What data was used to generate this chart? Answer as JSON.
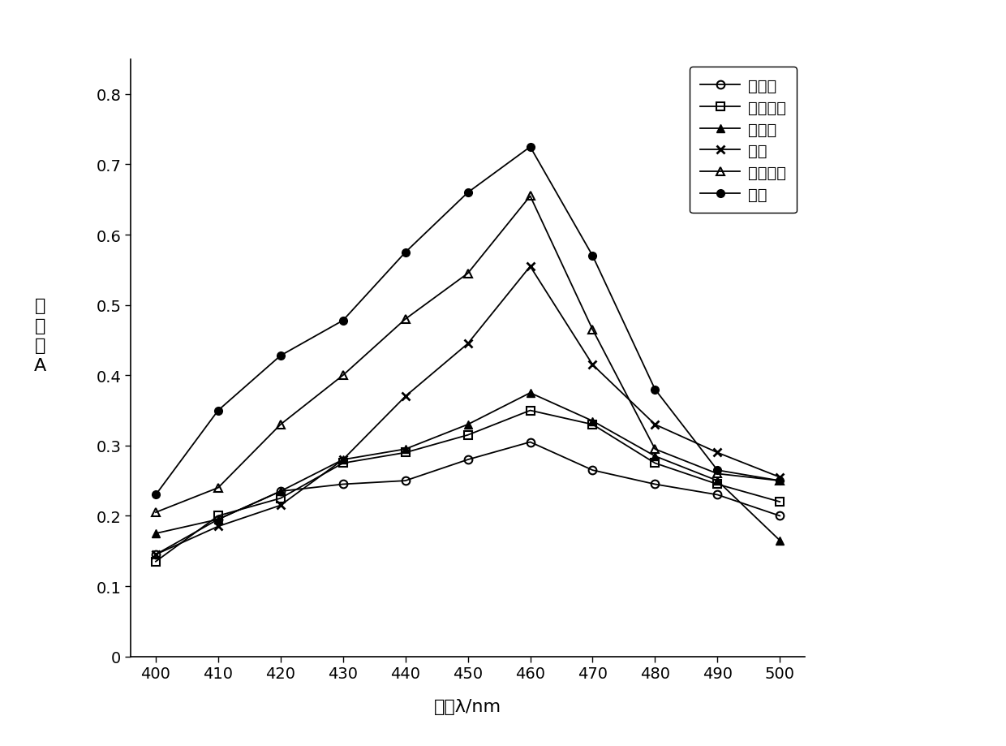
{
  "x": [
    400,
    410,
    420,
    430,
    440,
    450,
    460,
    470,
    480,
    490,
    500
  ],
  "series_order": [
    "正己烷",
    "乙酸乙酯",
    "石油醚",
    "乙醚",
    "无水乙醇",
    "丙酮"
  ],
  "series": {
    "正己烷": {
      "y": [
        0.145,
        0.195,
        0.235,
        0.245,
        0.25,
        0.28,
        0.305,
        0.265,
        0.245,
        0.23,
        0.2
      ],
      "marker": "o",
      "fillstyle": "none"
    },
    "乙酸乙酯": {
      "y": [
        0.135,
        0.2,
        0.225,
        0.275,
        0.29,
        0.315,
        0.35,
        0.33,
        0.275,
        0.245,
        0.22
      ],
      "marker": "s",
      "fillstyle": "none"
    },
    "石油醚": {
      "y": [
        0.175,
        0.195,
        0.235,
        0.28,
        0.295,
        0.33,
        0.375,
        0.335,
        0.285,
        0.25,
        0.165
      ],
      "marker": "^",
      "fillstyle": "full"
    },
    "乙醚": {
      "y": [
        0.145,
        0.185,
        0.215,
        0.28,
        0.37,
        0.445,
        0.555,
        0.415,
        0.33,
        0.29,
        0.255
      ],
      "marker": "x",
      "fillstyle": "full"
    },
    "无水乙醇": {
      "y": [
        0.205,
        0.24,
        0.33,
        0.4,
        0.48,
        0.545,
        0.655,
        0.465,
        0.295,
        0.26,
        0.25
      ],
      "marker": "^",
      "fillstyle": "none"
    },
    "丙酮": {
      "y": [
        0.23,
        0.35,
        0.428,
        0.478,
        0.575,
        0.66,
        0.725,
        0.57,
        0.38,
        0.265,
        0.25
      ],
      "marker": "o",
      "fillstyle": "full"
    }
  },
  "xlabel": "波长λ/nm",
  "ylabel_chars": [
    "吸",
    "光",
    "度",
    "A"
  ],
  "xlim": [
    396,
    504
  ],
  "ylim": [
    0,
    0.85
  ],
  "yticks": [
    0,
    0.1,
    0.2,
    0.3,
    0.4,
    0.5,
    0.6,
    0.7,
    0.8
  ],
  "ytick_labels": [
    "0",
    "0.1",
    "0.2",
    "0.3",
    "0.4",
    "0.5",
    "0.6",
    "0.7",
    "0.8"
  ],
  "xticks": [
    400,
    410,
    420,
    430,
    440,
    450,
    460,
    470,
    480,
    490,
    500
  ],
  "background_color": "#ffffff",
  "color": "#000000",
  "linewidth": 1.3,
  "markersize": 7,
  "fontsize_tick": 14,
  "fontsize_label": 16,
  "fontsize_legend": 14
}
